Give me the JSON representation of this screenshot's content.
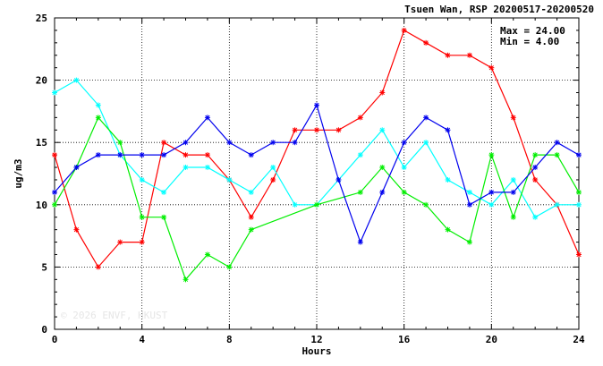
{
  "header": {
    "title": "Tsuen Wan, RSP 20200517-20200520"
  },
  "stats": {
    "max_label": "Max = 24.00",
    "min_label": "Min =  4.00"
  },
  "watermark": "© 2026 ENVF, HKUST",
  "chart_data": {
    "type": "line",
    "xlabel": "Hours",
    "ylabel": "ug/m3",
    "xlim": [
      0,
      24
    ],
    "ylim": [
      0,
      25
    ],
    "xticks": [
      0,
      4,
      8,
      12,
      16,
      20,
      24
    ],
    "yticks": [
      0,
      5,
      10,
      15,
      20,
      25
    ],
    "grid": true,
    "x": [
      0,
      1,
      2,
      3,
      4,
      5,
      6,
      7,
      8,
      9,
      10,
      11,
      12,
      13,
      14,
      15,
      16,
      17,
      18,
      19,
      20,
      21,
      22,
      23,
      24
    ],
    "series": [
      {
        "color": "#ff0000",
        "values": [
          14,
          8,
          5,
          7,
          7,
          15,
          14,
          14,
          12,
          9,
          12,
          16,
          16,
          16,
          17,
          19,
          24,
          23,
          22,
          22,
          21,
          17,
          12,
          10,
          6
        ]
      },
      {
        "color": "#00ffff",
        "values": [
          19,
          20,
          18,
          14,
          12,
          11,
          13,
          13,
          12,
          11,
          13,
          10,
          10,
          12,
          14,
          16,
          13,
          15,
          12,
          11,
          10,
          12,
          9,
          10,
          10
        ]
      },
      {
        "color": "#00ee00",
        "values": [
          10,
          13,
          17,
          15,
          9,
          9,
          4,
          6,
          5,
          8,
          null,
          null,
          10,
          null,
          11,
          13,
          11,
          10,
          8,
          7,
          14,
          9,
          14,
          14,
          11
        ]
      },
      {
        "color": "#0000ee",
        "values": [
          11,
          13,
          14,
          14,
          14,
          14,
          15,
          17,
          15,
          14,
          15,
          15,
          18,
          12,
          7,
          11,
          15,
          17,
          16,
          10,
          11,
          11,
          13,
          15,
          14
        ]
      }
    ]
  }
}
